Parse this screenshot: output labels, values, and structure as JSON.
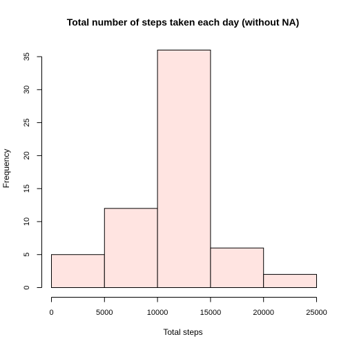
{
  "chart_data": {
    "type": "bar",
    "subtype": "histogram",
    "title": "Total number of steps taken each day (without NA)",
    "xlabel": "Total steps",
    "ylabel": "Frequency",
    "bins": [
      {
        "from": 0,
        "to": 5000,
        "count": 5
      },
      {
        "from": 5000,
        "to": 10000,
        "count": 12
      },
      {
        "from": 10000,
        "to": 15000,
        "count": 36
      },
      {
        "from": 15000,
        "to": 20000,
        "count": 6
      },
      {
        "from": 20000,
        "to": 25000,
        "count": 2
      }
    ],
    "xlim": [
      0,
      25000
    ],
    "ylim": [
      0,
      36
    ],
    "x_ticks": [
      0,
      5000,
      10000,
      15000,
      20000,
      25000
    ],
    "x_tick_labels": [
      "0",
      "5000",
      "10000",
      "15000",
      "20000",
      "25000"
    ],
    "y_ticks": [
      0,
      5,
      10,
      15,
      20,
      25,
      30,
      35
    ],
    "y_tick_labels": [
      "0",
      "5",
      "10",
      "15",
      "20",
      "25",
      "30",
      "35"
    ],
    "bar_color": "#ffe4e1",
    "bar_border_color": "#000000",
    "grid": false,
    "legend": "none"
  }
}
